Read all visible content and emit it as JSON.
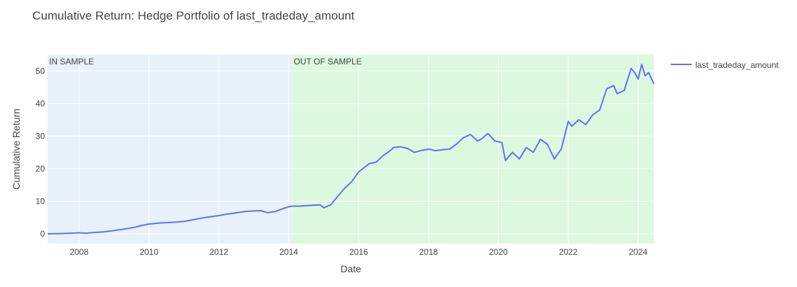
{
  "chart_data": {
    "type": "line",
    "title": "Cumulative Return: Hedge Portfolio of last_tradeday_amount",
    "xlabel": "Date",
    "ylabel": "Cumulative Return",
    "xlim": [
      2007.1,
      2024.45
    ],
    "ylim": [
      -3,
      55
    ],
    "x_ticks": [
      2008,
      2010,
      2012,
      2014,
      2016,
      2018,
      2020,
      2022,
      2024
    ],
    "y_ticks": [
      0,
      10,
      20,
      30,
      40,
      50
    ],
    "grid": true,
    "legend_position": "top-right",
    "colors": {
      "line": "#636efa",
      "in_sample_bg": "#e6f1f9",
      "out_sample_bg": "#dcf9df",
      "grid": "#ffffff",
      "text": "#444444"
    },
    "regions": [
      {
        "label": "IN SAMPLE",
        "x_start": 2007.1,
        "x_end": 2014.1
      },
      {
        "label": "OUT OF SAMPLE",
        "x_start": 2014.1,
        "x_end": 2024.45
      }
    ],
    "series": [
      {
        "name": "last_tradeday_amount",
        "x": [
          2007.1,
          2007.5,
          2008.0,
          2008.2,
          2008.4,
          2008.7,
          2009.0,
          2009.3,
          2009.6,
          2009.8,
          2010.0,
          2010.2,
          2010.4,
          2010.6,
          2010.8,
          2011.0,
          2011.2,
          2011.4,
          2011.6,
          2011.8,
          2012.0,
          2012.2,
          2012.4,
          2012.6,
          2012.8,
          2013.0,
          2013.2,
          2013.4,
          2013.6,
          2013.8,
          2014.0,
          2014.1,
          2014.3,
          2014.6,
          2014.9,
          2015.0,
          2015.2,
          2015.4,
          2015.6,
          2015.8,
          2016.0,
          2016.3,
          2016.5,
          2016.7,
          2016.9,
          2017.0,
          2017.2,
          2017.4,
          2017.6,
          2017.8,
          2018.0,
          2018.2,
          2018.4,
          2018.6,
          2018.8,
          2019.0,
          2019.2,
          2019.4,
          2019.5,
          2019.7,
          2019.9,
          2020.1,
          2020.2,
          2020.4,
          2020.6,
          2020.8,
          2021.0,
          2021.2,
          2021.4,
          2021.6,
          2021.8,
          2022.0,
          2022.1,
          2022.3,
          2022.5,
          2022.7,
          2022.9,
          2023.1,
          2023.3,
          2023.4,
          2023.6,
          2023.8,
          2023.9,
          2024.0,
          2024.1,
          2024.2,
          2024.3,
          2024.45
        ],
        "y": [
          0.0,
          0.1,
          0.3,
          0.2,
          0.4,
          0.6,
          1.0,
          1.5,
          2.0,
          2.6,
          3.0,
          3.2,
          3.4,
          3.5,
          3.6,
          3.8,
          4.2,
          4.6,
          5.0,
          5.3,
          5.6,
          6.0,
          6.3,
          6.6,
          6.9,
          7.0,
          7.1,
          6.5,
          6.8,
          7.6,
          8.3,
          8.5,
          8.5,
          8.7,
          8.9,
          8.0,
          8.9,
          11.5,
          14.0,
          16.0,
          19.0,
          21.5,
          22.0,
          24.0,
          25.5,
          26.5,
          26.7,
          26.2,
          25.0,
          25.6,
          26.0,
          25.5,
          25.8,
          26.0,
          27.5,
          29.5,
          30.5,
          28.5,
          29.0,
          30.8,
          28.5,
          28.0,
          22.5,
          25.0,
          23.0,
          26.5,
          25.0,
          29.0,
          27.5,
          23.0,
          26.0,
          34.5,
          33.0,
          35.0,
          33.5,
          36.5,
          38.0,
          44.5,
          45.5,
          43.0,
          44.0,
          50.8,
          49.5,
          47.5,
          52.0,
          48.5,
          49.5,
          46.0
        ]
      }
    ]
  }
}
